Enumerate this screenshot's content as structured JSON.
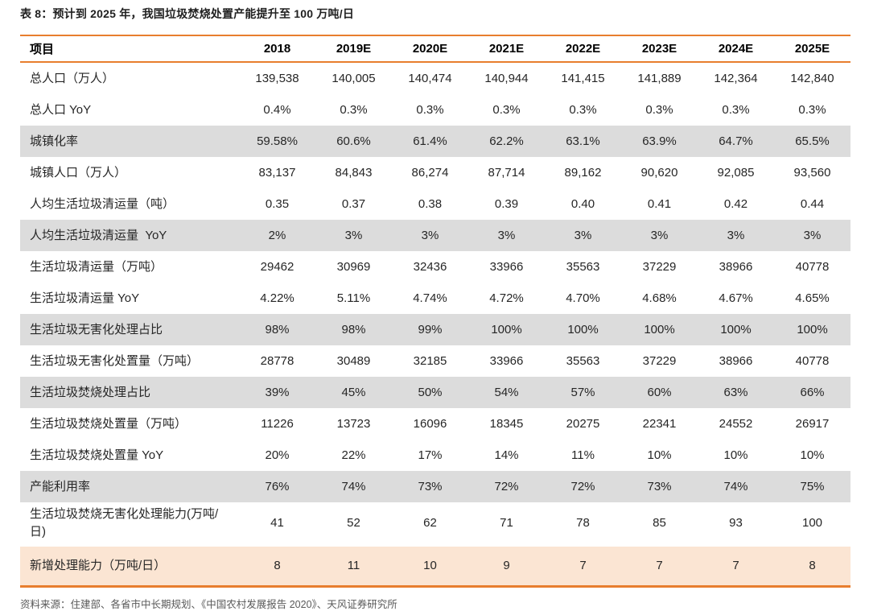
{
  "page": {
    "title": "表 8：预计到 2025 年，我国垃圾焚烧处置产能提升至 100 万吨/日",
    "source": "资料来源：住建部、各省市中长期规划、《中国农村发展报告 2020》、天风证券研究所"
  },
  "colors": {
    "accent_orange": "#E87E2E",
    "row_gray": "#DCDCDC",
    "row_peach": "#FBE5D3"
  },
  "chart_data": {
    "type": "table",
    "title": "表 8：预计到 2025 年，我国垃圾焚烧处置产能提升至 100 万吨/日",
    "columns": [
      "项目",
      "2018",
      "2019E",
      "2020E",
      "2021E",
      "2022E",
      "2023E",
      "2024E",
      "2025E"
    ],
    "rows": [
      {
        "label": "总人口（万人）",
        "values": [
          "139,538",
          "140,005",
          "140,474",
          "140,944",
          "141,415",
          "141,889",
          "142,364",
          "142,840"
        ],
        "shade": "white"
      },
      {
        "label": "总人口 YoY",
        "values": [
          "0.4%",
          "0.3%",
          "0.3%",
          "0.3%",
          "0.3%",
          "0.3%",
          "0.3%",
          "0.3%"
        ],
        "shade": "white"
      },
      {
        "label": "城镇化率",
        "values": [
          "59.58%",
          "60.6%",
          "61.4%",
          "62.2%",
          "63.1%",
          "63.9%",
          "64.7%",
          "65.5%"
        ],
        "shade": "gray"
      },
      {
        "label": "城镇人口（万人）",
        "values": [
          "83,137",
          "84,843",
          "86,274",
          "87,714",
          "89,162",
          "90,620",
          "92,085",
          "93,560"
        ],
        "shade": "white"
      },
      {
        "label": "人均生活垃圾清运量（吨）",
        "values": [
          "0.35",
          "0.37",
          "0.38",
          "0.39",
          "0.40",
          "0.41",
          "0.42",
          "0.44"
        ],
        "shade": "white"
      },
      {
        "label": "人均生活垃圾清运量  YoY",
        "values": [
          "2%",
          "3%",
          "3%",
          "3%",
          "3%",
          "3%",
          "3%",
          "3%"
        ],
        "shade": "gray"
      },
      {
        "label": "生活垃圾清运量（万吨）",
        "values": [
          "29462",
          "30969",
          "32436",
          "33966",
          "35563",
          "37229",
          "38966",
          "40778"
        ],
        "shade": "white"
      },
      {
        "label": "生活垃圾清运量 YoY",
        "values": [
          "4.22%",
          "5.11%",
          "4.74%",
          "4.72%",
          "4.70%",
          "4.68%",
          "4.67%",
          "4.65%"
        ],
        "shade": "white"
      },
      {
        "label": "生活垃圾无害化处理占比",
        "values": [
          "98%",
          "98%",
          "99%",
          "100%",
          "100%",
          "100%",
          "100%",
          "100%"
        ],
        "shade": "gray"
      },
      {
        "label": "生活垃圾无害化处置量（万吨）",
        "values": [
          "28778",
          "30489",
          "32185",
          "33966",
          "35563",
          "37229",
          "38966",
          "40778"
        ],
        "shade": "white"
      },
      {
        "label": "生活垃圾焚烧处理占比",
        "values": [
          "39%",
          "45%",
          "50%",
          "54%",
          "57%",
          "60%",
          "63%",
          "66%"
        ],
        "shade": "gray"
      },
      {
        "label": "生活垃圾焚烧处置量（万吨）",
        "values": [
          "11226",
          "13723",
          "16096",
          "18345",
          "20275",
          "22341",
          "24552",
          "26917"
        ],
        "shade": "white"
      },
      {
        "label": "生活垃圾焚烧处置量 YoY",
        "values": [
          "20%",
          "22%",
          "17%",
          "14%",
          "11%",
          "10%",
          "10%",
          "10%"
        ],
        "shade": "white"
      },
      {
        "label": "产能利用率",
        "values": [
          "76%",
          "74%",
          "73%",
          "72%",
          "72%",
          "73%",
          "74%",
          "75%"
        ],
        "shade": "gray"
      },
      {
        "label": "生活垃圾焚烧无害化处理能力(万吨/日)",
        "values": [
          "41",
          "52",
          "62",
          "71",
          "78",
          "85",
          "93",
          "100"
        ],
        "shade": "white"
      },
      {
        "label": "新增处理能力（万吨/日）",
        "values": [
          "8",
          "11",
          "10",
          "9",
          "7",
          "7",
          "7",
          "8"
        ],
        "shade": "peach"
      }
    ]
  }
}
